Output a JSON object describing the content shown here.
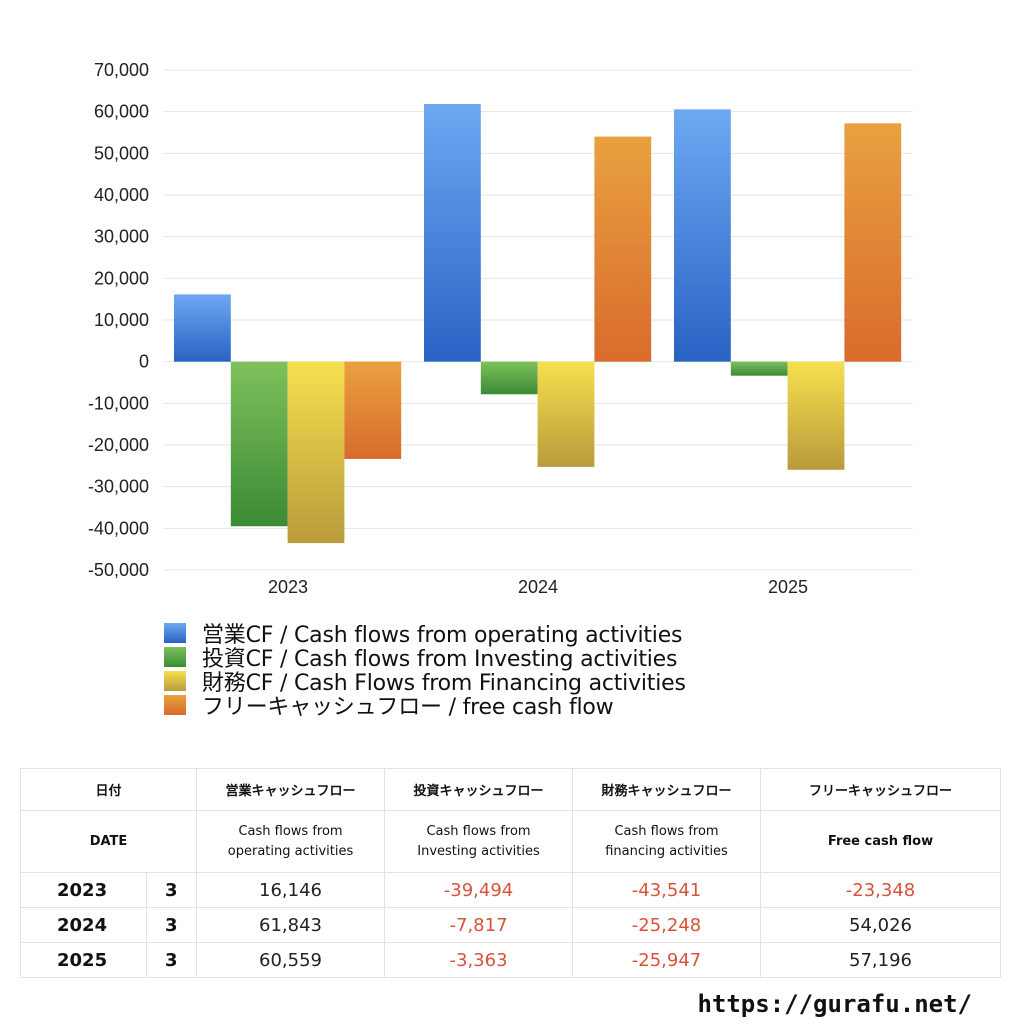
{
  "chart_data": {
    "type": "bar",
    "categories": [
      "2023",
      "2024",
      "2025"
    ],
    "series": [
      {
        "name": "営業CF / Cash flows from operating activities",
        "values": [
          16146,
          61843,
          60559
        ]
      },
      {
        "name": "投資CF / Cash flows from Investing activities",
        "values": [
          -39494,
          -7817,
          -3363
        ]
      },
      {
        "name": "財務CF / Cash Flows from Financing activities",
        "values": [
          -43541,
          -25248,
          -25947
        ]
      },
      {
        "name": "フリーキャッシュフロー / free cash flow",
        "values": [
          -23348,
          54026,
          57196
        ]
      }
    ],
    "ylim": [
      -50000,
      70000
    ],
    "yticks": [
      70000,
      60000,
      50000,
      40000,
      30000,
      20000,
      10000,
      0,
      -10000,
      -20000,
      -30000,
      -40000,
      -50000
    ],
    "ytick_labels": [
      "70,000",
      "60,000",
      "50,000",
      "40,000",
      "30,000",
      "20,000",
      "10,000",
      "0",
      "-10,000",
      "-20,000",
      "-30,000",
      "-40,000",
      "-50,000"
    ],
    "grid": true,
    "legend_position": "bottom",
    "colors": [
      {
        "top": "#6ea8f2",
        "bottom": "#2a62c4"
      },
      {
        "top": "#7fc15c",
        "bottom": "#3a8a35"
      },
      {
        "top": "#f6e04e",
        "bottom": "#b99b3c"
      },
      {
        "top": "#e9a140",
        "bottom": "#d96b2c"
      }
    ]
  },
  "legend": [
    {
      "label": "営業CF / Cash flows from operating activities"
    },
    {
      "label": "投資CF / Cash flows from Investing activities"
    },
    {
      "label": "財務CF / Cash Flows from Financing activities"
    },
    {
      "label": "フリーキャッシュフロー / free cash flow"
    }
  ],
  "table": {
    "header_jp": {
      "date": "日付",
      "op": "営業キャッシュフロー",
      "inv": "投資キャッシュフロー",
      "fin": "財務キャッシュフロー",
      "fcf": "フリーキャッシュフロー"
    },
    "header_en": {
      "date": "DATE",
      "op": [
        "Cash flows from",
        "operating activities"
      ],
      "inv": [
        "Cash flows from",
        "Investing activities"
      ],
      "fin": [
        "Cash flows from",
        "financing activities"
      ],
      "fcf": "Free cash flow"
    },
    "rows": [
      {
        "year": "2023",
        "month": "3",
        "op": "16,146",
        "inv": "-39,494",
        "fin": "-43,541",
        "fcf": "-23,348"
      },
      {
        "year": "2024",
        "month": "3",
        "op": "61,843",
        "inv": "-7,817",
        "fin": "-25,248",
        "fcf": "54,026"
      },
      {
        "year": "2025",
        "month": "3",
        "op": "60,559",
        "inv": "-3,363",
        "fin": "-25,947",
        "fcf": "57,196"
      }
    ]
  },
  "footer": {
    "url": "https://gurafu.net/"
  }
}
